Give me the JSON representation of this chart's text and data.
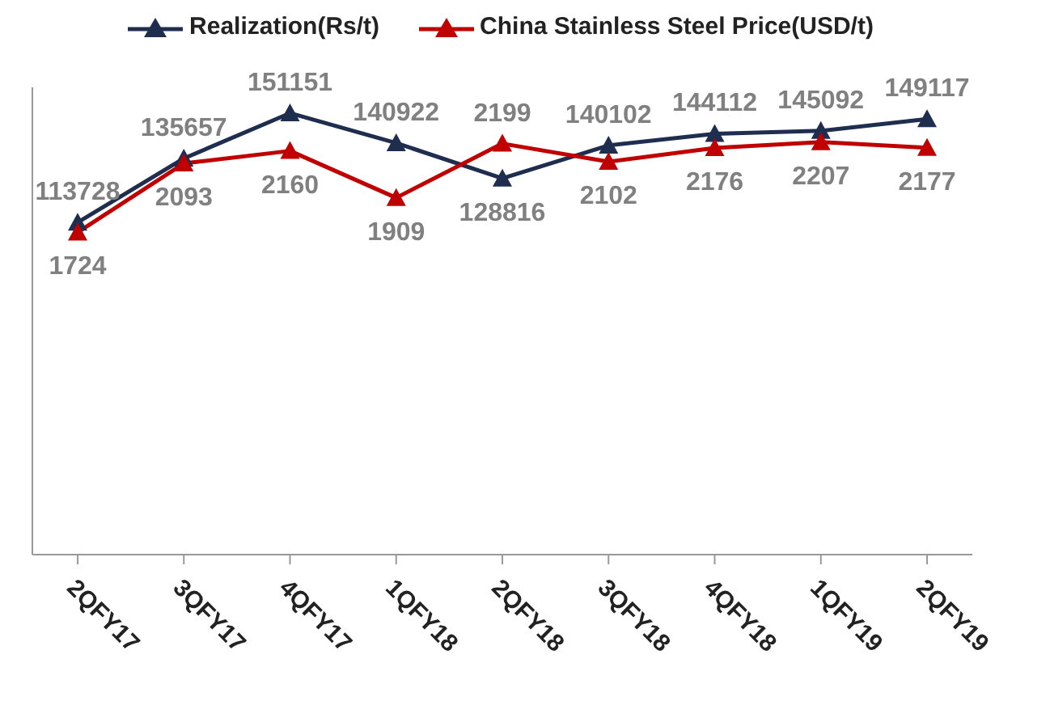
{
  "chart_data": {
    "type": "line",
    "categories": [
      "2QFY17",
      "3QFY17",
      "4QFY17",
      "1QFY18",
      "2QFY18",
      "3QFY18",
      "4QFY18",
      "1QFY19",
      "2QFY19"
    ],
    "series": [
      {
        "name": "Realization(Rs/t)",
        "color": "#1f2d4f",
        "values": [
          113728,
          135657,
          151151,
          140922,
          128816,
          140102,
          144112,
          145092,
          149117
        ]
      },
      {
        "name": "China Stainless Steel Price(USD/t)",
        "color": "#c00000",
        "axis": "y2",
        "values": [
          1724,
          2093,
          2160,
          1909,
          2199,
          2102,
          2176,
          2207,
          2177
        ]
      }
    ],
    "ylim": [
      0,
      160000
    ],
    "y2lim": [
      0,
      2500
    ],
    "tick_labels": "x",
    "data_labels": true,
    "legend": "top",
    "marker": "triangle"
  }
}
